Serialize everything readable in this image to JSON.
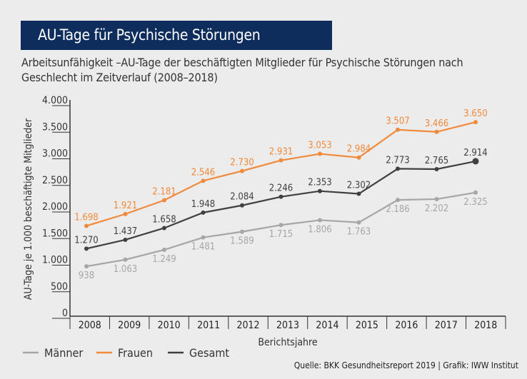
{
  "title": "AU-Tage für Psychische Störungen",
  "subtitle": "Arbeitsunfähigkeit –AU-Tage der beschäftigten Mitglieder für Psychische Störungen nach Geschlecht im Zeitverlauf (2008–2018)",
  "source": "Quelle: BKK Gesundheitsreport 2019 | Grafik: IWW Institut",
  "chart_data": {
    "type": "line",
    "xlabel": "Berichtsjahre",
    "ylabel": "AU-Tage je 1.000 beschäftigte Mitglieder",
    "categories": [
      "2008",
      "2009",
      "2010",
      "2011",
      "2012",
      "2013",
      "2014",
      "2015",
      "2016",
      "2017",
      "2018"
    ],
    "ylim": [
      0,
      4000
    ],
    "yticks": [
      0,
      500,
      1000,
      1500,
      2000,
      2500,
      3000,
      3500,
      4000
    ],
    "ytick_labels": [
      "0",
      "500",
      "1.000",
      "1.500",
      "2.000",
      "2.500",
      "3.000",
      "3.500",
      "4.000"
    ],
    "grid": false,
    "legend": "bottom-left",
    "series": [
      {
        "name": "Männer",
        "color": "#a6a6a6",
        "values": [
          938,
          1063,
          1249,
          1481,
          1589,
          1715,
          1806,
          1763,
          2186,
          2202,
          2325
        ],
        "labels": [
          "938",
          "1.063",
          "1.249",
          "1.481",
          "1.589",
          "1.715",
          "1.806",
          "1.763",
          "2.186",
          "2.202",
          "2.325"
        ],
        "label_position": "below"
      },
      {
        "name": "Frauen",
        "color": "#f08a3c",
        "values": [
          1698,
          1921,
          2181,
          2546,
          2730,
          2931,
          3053,
          2984,
          3507,
          3466,
          3650
        ],
        "labels": [
          "1.698",
          "1.921",
          "2.181",
          "2.546",
          "2.730",
          "2.931",
          "3.053",
          "2.984",
          "3.507",
          "3.466",
          "3.650"
        ],
        "label_position": "above"
      },
      {
        "name": "Gesamt",
        "color": "#404040",
        "values": [
          1270,
          1437,
          1658,
          1948,
          2084,
          2246,
          2353,
          2302,
          2773,
          2765,
          2914
        ],
        "labels": [
          "1.270",
          "1.437",
          "1.658",
          "1.948",
          "2.084",
          "2.246",
          "2.353",
          "2.302",
          "2.773",
          "2.765",
          "2.914"
        ],
        "label_position": "above"
      }
    ]
  }
}
